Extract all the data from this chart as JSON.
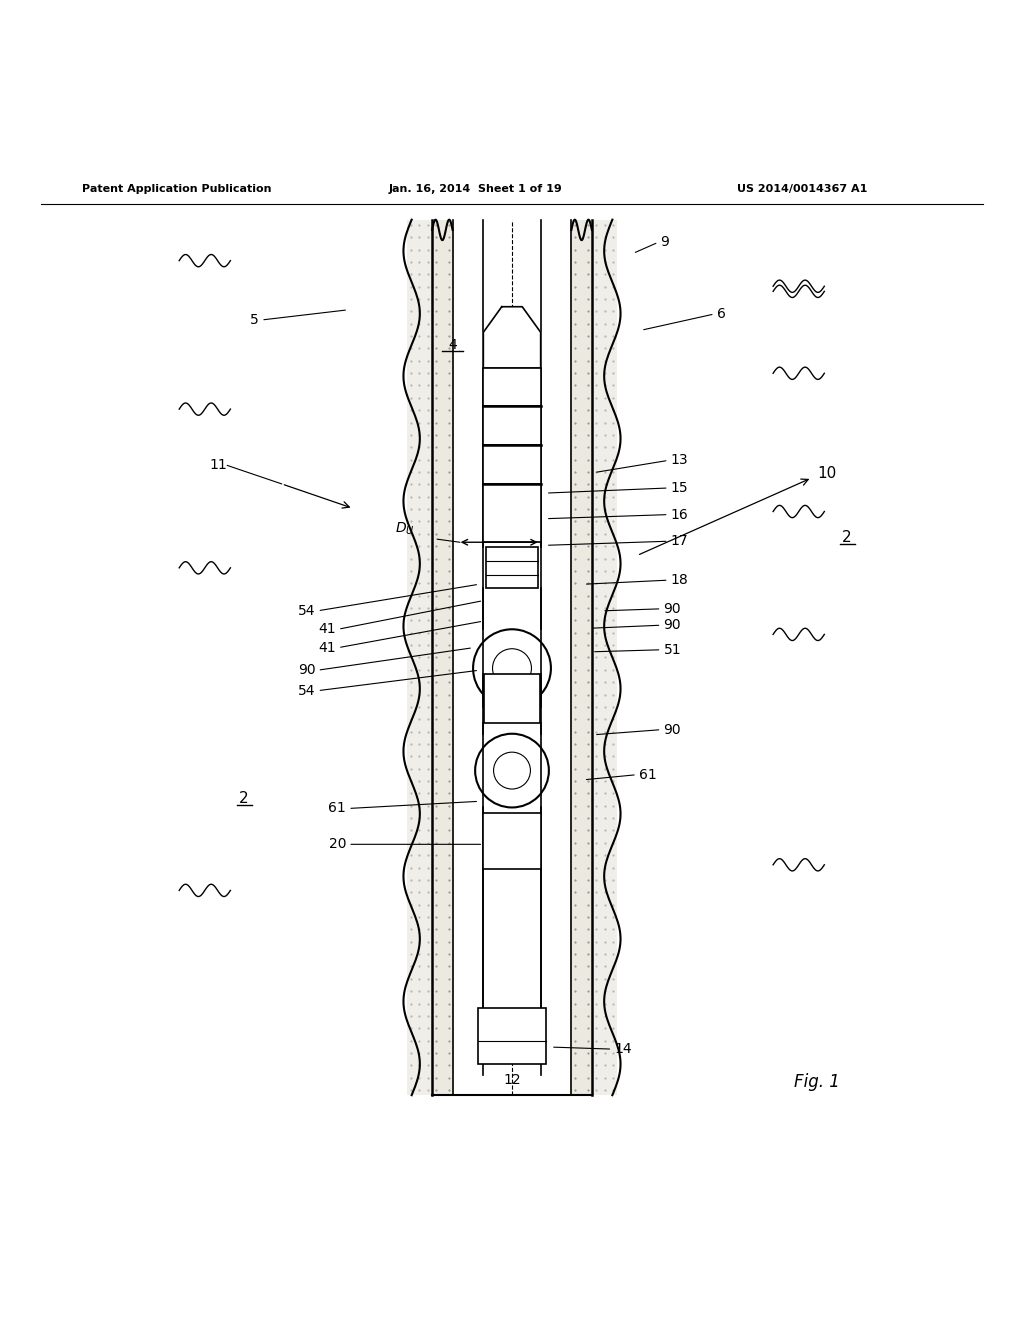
{
  "header_left": "Patent Application Publication",
  "header_mid": "Jan. 16, 2014  Sheet 1 of 19",
  "header_right": "US 2014/0014367 A1",
  "fig_label": "Fig. 1",
  "bg_color": "#ffffff",
  "line_color": "#000000"
}
